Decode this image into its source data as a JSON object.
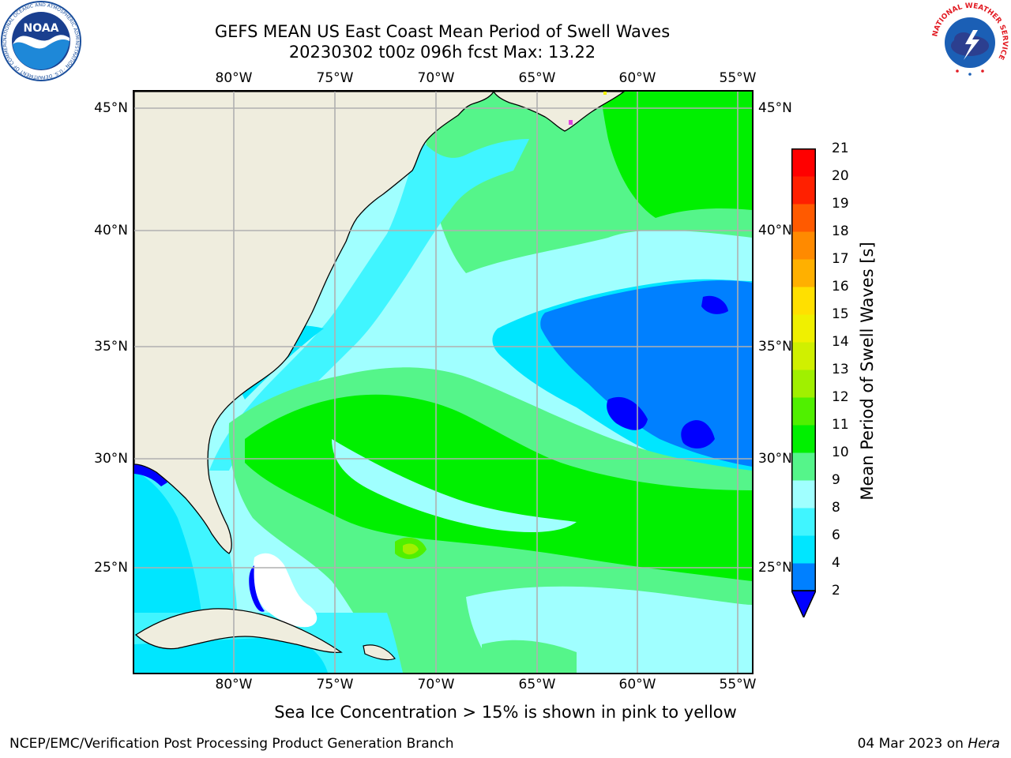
{
  "title": {
    "line1": "GEFS MEAN US East Coast Mean Period of Swell Waves",
    "line2": "20230302 t00z 096h fcst   Max: 13.22"
  },
  "map": {
    "lon_labels": [
      "80°W",
      "75°W",
      "70°W",
      "65°W",
      "60°W",
      "55°W"
    ],
    "lat_labels": [
      "45°N",
      "40°N",
      "35°N",
      "30°N",
      "25°N"
    ],
    "land_color": "#efedde",
    "grid_color": "#b0b0b0"
  },
  "colorbar": {
    "label": "Mean Period of Swell Waves [s]",
    "ticks": [
      "2",
      "4",
      "6",
      "8",
      "9",
      "10",
      "11",
      "12",
      "13",
      "14",
      "15",
      "16",
      "17",
      "18",
      "19",
      "20",
      "21"
    ],
    "colors": [
      "#0000ff",
      "#0080ff",
      "#00e6ff",
      "#40f5ff",
      "#a0ffff",
      "#55f58a",
      "#00f000",
      "#50f000",
      "#a0f000",
      "#d0f000",
      "#f0f000",
      "#ffe000",
      "#ffb000",
      "#ff8a00",
      "#ff5a00",
      "#ff2000",
      "#ff0000"
    ],
    "extend_color": "#0000ff"
  },
  "note": "Sea Ice Concentration > 15% is shown in pink to yellow",
  "credits": "NCEP/EMC/Verification Post Processing Product Generation Branch",
  "date": "04 Mar 2023 on ",
  "machine": "Hera",
  "logos": {
    "noaa_text": "NOAA",
    "noaa_ring": "NATIONAL OCEANIC AND ATMOSPHERIC ADMINISTRATION · U.S. DEPARTMENT OF COMMERCE",
    "nws_ring": "NATIONAL WEATHER SERVICE"
  }
}
